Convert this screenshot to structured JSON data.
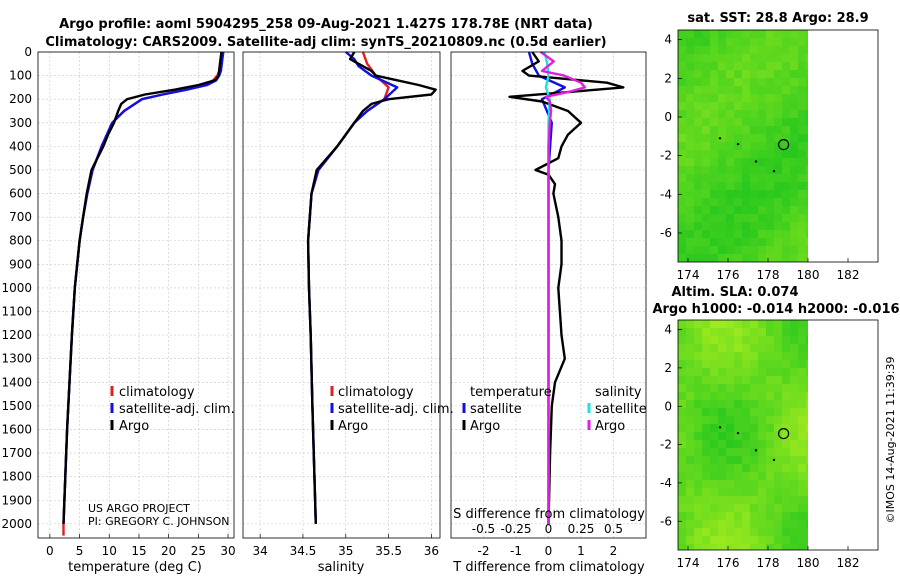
{
  "title": {
    "line1": "Argo profile: aoml 5904295_258 09-Aug-2021 1.427S 178.78E (NRT data)",
    "line2": "Climatology: CARS2009. Satellite-adj clim: synTS_20210809.nc (0.5d earlier)"
  },
  "depth_ticks": [
    0,
    100,
    200,
    300,
    400,
    500,
    600,
    700,
    800,
    900,
    1000,
    1100,
    1200,
    1300,
    1400,
    1500,
    1600,
    1700,
    1800,
    1900,
    2000
  ],
  "colors": {
    "climatology": "#e02020",
    "satellite": "#1010e0",
    "argo": "#000000",
    "cyan": "#20e0e0",
    "magenta": "#e020e0",
    "map_green": "#22cc22",
    "map_light": "#88ee22"
  },
  "chart_data": [
    {
      "type": "line",
      "id": "temperature",
      "xlabel": "temperature (deg C)",
      "ylabel": "",
      "xlim": [
        -2,
        31
      ],
      "ylim": [
        2060,
        0
      ],
      "x_ticks": [
        0,
        5,
        10,
        15,
        20,
        25,
        30
      ],
      "legend": [
        "climatology",
        "satellite-adj. clim.",
        "Argo"
      ],
      "credit1": "US ARGO PROJECT",
      "credit2": "PI: GREGORY C. JOHNSON",
      "series": [
        {
          "name": "climatology",
          "depth": [
            0,
            20,
            40,
            60,
            80,
            100,
            120,
            140,
            160,
            180,
            200,
            250,
            300,
            400,
            500,
            600,
            700,
            800,
            900,
            1000,
            1200,
            1400,
            1600,
            1800,
            2000,
            2050
          ],
          "values": [
            28.9,
            28.8,
            28.7,
            28.6,
            28.5,
            28.2,
            27.5,
            26,
            23,
            19,
            15.5,
            12.5,
            10.5,
            8.7,
            7.2,
            6.3,
            5.6,
            5,
            4.6,
            4.2,
            3.7,
            3.3,
            2.9,
            2.6,
            2.3,
            2.3
          ]
        },
        {
          "name": "satellite-adj. clim.",
          "depth": [
            0,
            20,
            40,
            60,
            80,
            100,
            120,
            140,
            160,
            180,
            200,
            250,
            300,
            400,
            500,
            600,
            700,
            800,
            900,
            1000,
            1200,
            1400,
            1600,
            1800,
            2000
          ],
          "values": [
            29.2,
            29.1,
            29,
            28.9,
            28.8,
            28.5,
            28,
            26.5,
            23,
            19,
            15.5,
            12.5,
            10.5,
            8.7,
            7.2,
            6.3,
            5.6,
            5,
            4.6,
            4.2,
            3.7,
            3.3,
            2.9,
            2.6,
            2.3
          ]
        },
        {
          "name": "Argo",
          "depth": [
            0,
            20,
            40,
            60,
            80,
            100,
            120,
            140,
            160,
            180,
            200,
            220,
            250,
            300,
            350,
            400,
            450,
            500,
            600,
            700,
            800,
            900,
            1000,
            1200,
            1400,
            1600,
            1800,
            2000
          ],
          "values": [
            28.9,
            28.8,
            28.7,
            28.6,
            28.5,
            28.4,
            27.8,
            25,
            21,
            16,
            13,
            12,
            11.5,
            10.8,
            9.8,
            9.0,
            8.0,
            7.0,
            6.2,
            5.6,
            5.0,
            4.6,
            4.2,
            3.7,
            3.3,
            2.9,
            2.6,
            2.3
          ]
        }
      ]
    },
    {
      "type": "line",
      "id": "salinity",
      "xlabel": "salinity",
      "ylabel": "",
      "xlim": [
        33.8,
        36.1
      ],
      "ylim": [
        2060,
        0
      ],
      "x_ticks": [
        34,
        34.5,
        35,
        35.5,
        36
      ],
      "legend": [
        "climatology",
        "satellite-adj. clim.",
        "Argo"
      ],
      "series": [
        {
          "name": "climatology",
          "depth": [
            0,
            50,
            100,
            150,
            200,
            250,
            300,
            400,
            500,
            600,
            800,
            1000,
            1200,
            1500,
            2000
          ],
          "values": [
            35.2,
            35.25,
            35.35,
            35.5,
            35.45,
            35.25,
            35.1,
            34.9,
            34.68,
            34.6,
            34.56,
            34.57,
            34.59,
            34.61,
            34.65
          ]
        },
        {
          "name": "satellite-adj. clim.",
          "depth": [
            0,
            30,
            60,
            100,
            150,
            200,
            250,
            300,
            400,
            500,
            600,
            800,
            1000,
            1200,
            1500,
            2000
          ],
          "values": [
            35.0,
            35.1,
            35.15,
            35.3,
            35.6,
            35.45,
            35.25,
            35.1,
            34.9,
            34.68,
            34.6,
            34.56,
            34.57,
            34.59,
            34.61,
            34.65
          ]
        },
        {
          "name": "Argo",
          "depth": [
            0,
            30,
            60,
            80,
            100,
            120,
            140,
            160,
            180,
            200,
            220,
            250,
            300,
            400,
            500,
            600,
            800,
            1000,
            1200,
            1500,
            2000
          ],
          "values": [
            35.1,
            35.05,
            35.2,
            35.3,
            35.35,
            35.6,
            35.85,
            36.05,
            36.0,
            35.5,
            35.3,
            35.2,
            35.1,
            34.9,
            34.66,
            34.6,
            34.56,
            34.57,
            34.59,
            34.61,
            34.65
          ]
        }
      ]
    },
    {
      "type": "line",
      "id": "difference",
      "xlabel": "T difference from climatology",
      "xlabel_top": "S difference from climatology",
      "xlim": [
        -3,
        3
      ],
      "ylim": [
        2060,
        0
      ],
      "x_ticks": [
        -2,
        -1,
        0,
        1,
        2
      ],
      "x_ticks_top": [
        "-0.5",
        "-0.25",
        "0",
        "0.25",
        "0.5"
      ],
      "legend_temp_title": "temperature",
      "legend_sal_title": "salinity",
      "legend": [
        "satellite",
        "Argo",
        "satellite",
        "Argo"
      ],
      "series": [
        {
          "name": "T satellite",
          "depth": [
            0,
            50,
            100,
            150,
            200,
            300,
            400,
            500,
            600,
            800,
            1000,
            1500,
            2000
          ],
          "values": [
            -0.6,
            -0.5,
            -0.3,
            0.5,
            -0.2,
            0.1,
            0.05,
            0.0,
            0.0,
            0.0,
            0.0,
            0.0,
            0.0
          ]
        },
        {
          "name": "T Argo",
          "depth": [
            0,
            40,
            80,
            100,
            130,
            150,
            170,
            190,
            210,
            250,
            300,
            350,
            400,
            450,
            500,
            520,
            560,
            600,
            700,
            800,
            900,
            1000,
            1100,
            1200,
            1300,
            1400,
            1500,
            1700,
            2000
          ],
          "values": [
            -0.5,
            -0.3,
            -0.8,
            -0.6,
            1.8,
            2.3,
            0.6,
            -1.2,
            -0.2,
            0.6,
            1.0,
            0.6,
            0.4,
            0.3,
            -0.4,
            0.0,
            0.2,
            0.15,
            0.3,
            0.4,
            0.4,
            0.3,
            0.35,
            0.4,
            0.5,
            0.2,
            0.1,
            0.05,
            0.0
          ]
        },
        {
          "name": "S satellite",
          "depth": [
            0,
            50,
            100,
            150,
            200,
            300,
            500,
            700,
            1000,
            1500,
            2000
          ],
          "values": [
            -0.03,
            -0.01,
            0.0,
            -0.02,
            0.01,
            0.0,
            0.0,
            0.0,
            0.0,
            0.0,
            0.0
          ]
        },
        {
          "name": "S Argo",
          "depth": [
            0,
            40,
            80,
            100,
            130,
            150,
            170,
            190,
            210,
            250,
            300,
            400,
            600,
            1000,
            2000
          ],
          "values": [
            -0.06,
            0.04,
            -0.05,
            0.12,
            0.25,
            0.28,
            0.15,
            -0.02,
            0.01,
            0.02,
            0.01,
            0.0,
            0.0,
            0.0,
            0.0
          ]
        }
      ]
    },
    {
      "type": "heatmap",
      "id": "sst_map",
      "title": "sat. SST: 28.8 Argo: 28.9",
      "x_ticks": [
        174,
        176,
        178,
        180,
        182
      ],
      "y_ticks": [
        4,
        2,
        0,
        -2,
        -4,
        -6
      ],
      "xlim": [
        173.5,
        183.5
      ],
      "ylim": [
        -7.5,
        4.5
      ],
      "float_position": [
        178.78,
        -1.427
      ]
    },
    {
      "type": "heatmap",
      "id": "sla_map",
      "title1": "Altim. SLA: 0.074",
      "title2": "Argo h1000: -0.014 h2000: -0.016",
      "x_ticks": [
        174,
        176,
        178,
        180,
        182
      ],
      "y_ticks": [
        4,
        2,
        0,
        -2,
        -4,
        -6
      ],
      "xlim": [
        173.5,
        183.5
      ],
      "ylim": [
        -7.5,
        4.5
      ],
      "float_position": [
        178.78,
        -1.427
      ]
    }
  ],
  "watermark": "©IMOS 14-Aug-2021 11:39:39"
}
